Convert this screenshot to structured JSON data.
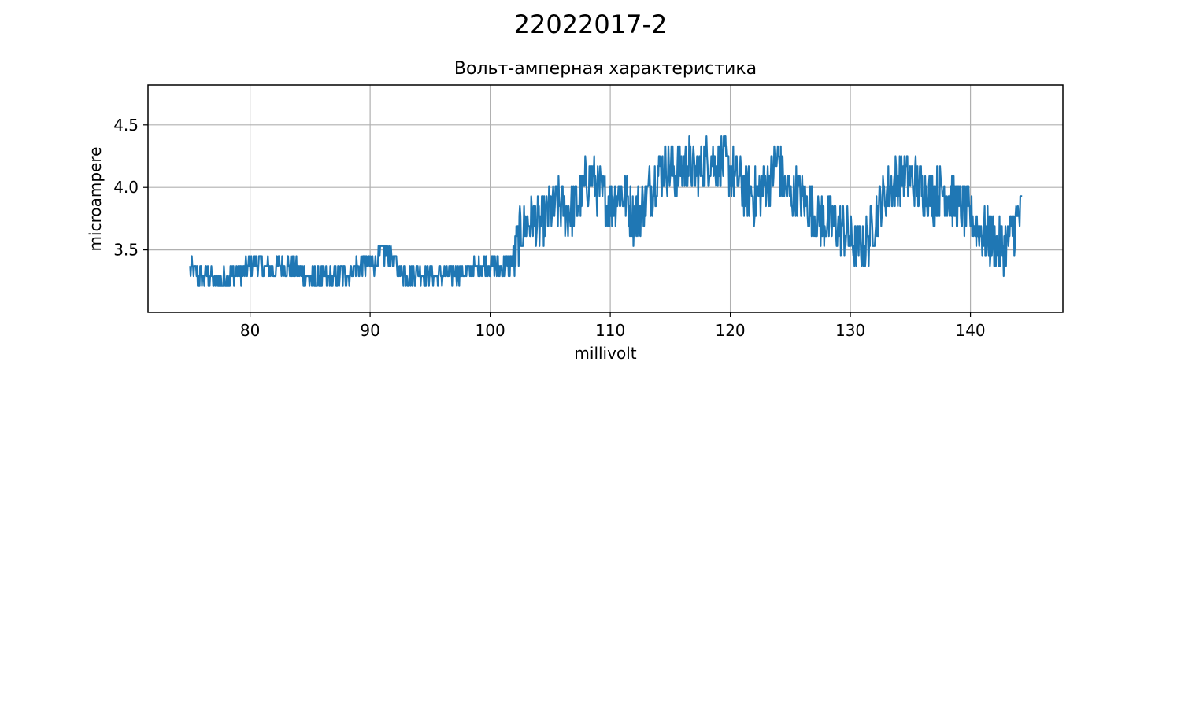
{
  "figure": {
    "suptitle": "22022017-2"
  },
  "chart_data": {
    "type": "line",
    "title": "Вольт-амперная характеристика",
    "xlabel": "millivolt",
    "ylabel": "microampere",
    "xlim": [
      71.5,
      147.7
    ],
    "ylim": [
      3.0,
      4.82
    ],
    "xticks": [
      80,
      90,
      100,
      110,
      120,
      130,
      140
    ],
    "xtick_labels": [
      "80",
      "90",
      "100",
      "110",
      "120",
      "130",
      "140"
    ],
    "yticks": [
      3.5,
      4.0,
      4.5
    ],
    "ytick_labels": [
      "3.5",
      "4.0",
      "4.5"
    ],
    "grid": true,
    "series": [
      {
        "color": "#1f77b4",
        "x_range": [
          75.0,
          144.3
        ],
        "points": [
          [
            75.0,
            3.33
          ],
          [
            75.5,
            3.28
          ],
          [
            76.0,
            3.27
          ],
          [
            76.5,
            3.28
          ],
          [
            77.0,
            3.25
          ],
          [
            77.5,
            3.24
          ],
          [
            78.0,
            3.26
          ],
          [
            78.5,
            3.28
          ],
          [
            79.0,
            3.3
          ],
          [
            79.5,
            3.32
          ],
          [
            80.0,
            3.36
          ],
          [
            80.5,
            3.38
          ],
          [
            81.0,
            3.35
          ],
          [
            81.5,
            3.33
          ],
          [
            82.0,
            3.34
          ],
          [
            82.5,
            3.36
          ],
          [
            83.0,
            3.37
          ],
          [
            83.5,
            3.35
          ],
          [
            84.0,
            3.33
          ],
          [
            84.5,
            3.3
          ],
          [
            85.0,
            3.26
          ],
          [
            85.5,
            3.25
          ],
          [
            86.0,
            3.26
          ],
          [
            86.5,
            3.27
          ],
          [
            87.0,
            3.26
          ],
          [
            87.5,
            3.28
          ],
          [
            88.0,
            3.3
          ],
          [
            88.5,
            3.33
          ],
          [
            89.0,
            3.35
          ],
          [
            89.5,
            3.37
          ],
          [
            90.0,
            3.38
          ],
          [
            90.5,
            3.4
          ],
          [
            91.0,
            3.45
          ],
          [
            91.5,
            3.48
          ],
          [
            92.0,
            3.38
          ],
          [
            92.5,
            3.33
          ],
          [
            93.0,
            3.3
          ],
          [
            93.5,
            3.29
          ],
          [
            94.0,
            3.3
          ],
          [
            94.5,
            3.31
          ],
          [
            95.0,
            3.29
          ],
          [
            95.5,
            3.28
          ],
          [
            96.0,
            3.29
          ],
          [
            96.5,
            3.3
          ],
          [
            97.0,
            3.31
          ],
          [
            97.5,
            3.3
          ],
          [
            98.0,
            3.31
          ],
          [
            98.5,
            3.33
          ],
          [
            99.0,
            3.34
          ],
          [
            99.5,
            3.35
          ],
          [
            100.0,
            3.36
          ],
          [
            100.5,
            3.35
          ],
          [
            101.0,
            3.34
          ],
          [
            101.5,
            3.36
          ],
          [
            102.0,
            3.42
          ],
          [
            102.5,
            3.62
          ],
          [
            103.0,
            3.72
          ],
          [
            103.5,
            3.74
          ],
          [
            104.0,
            3.68
          ],
          [
            104.5,
            3.72
          ],
          [
            105.0,
            3.8
          ],
          [
            105.5,
            3.86
          ],
          [
            106.0,
            3.84
          ],
          [
            106.5,
            3.8
          ],
          [
            107.0,
            3.83
          ],
          [
            107.5,
            3.9
          ],
          [
            108.0,
            4.02
          ],
          [
            108.5,
            4.08
          ],
          [
            109.0,
            3.98
          ],
          [
            109.5,
            3.88
          ],
          [
            110.0,
            3.86
          ],
          [
            110.5,
            3.93
          ],
          [
            111.0,
            3.96
          ],
          [
            111.5,
            3.85
          ],
          [
            112.0,
            3.76
          ],
          [
            112.5,
            3.8
          ],
          [
            113.0,
            3.9
          ],
          [
            113.5,
            4.0
          ],
          [
            114.0,
            4.1
          ],
          [
            114.5,
            4.18
          ],
          [
            115.0,
            4.14
          ],
          [
            115.5,
            4.1
          ],
          [
            116.0,
            4.15
          ],
          [
            116.5,
            4.18
          ],
          [
            117.0,
            4.12
          ],
          [
            117.5,
            4.15
          ],
          [
            118.0,
            4.2
          ],
          [
            118.5,
            4.22
          ],
          [
            119.0,
            4.18
          ],
          [
            119.5,
            4.2
          ],
          [
            120.0,
            4.12
          ],
          [
            120.5,
            4.05
          ],
          [
            121.0,
            4.0
          ],
          [
            121.5,
            3.96
          ],
          [
            122.0,
            3.92
          ],
          [
            122.5,
            3.96
          ],
          [
            123.0,
            4.02
          ],
          [
            123.5,
            4.1
          ],
          [
            124.0,
            4.2
          ],
          [
            124.5,
            4.0
          ],
          [
            125.0,
            3.9
          ],
          [
            125.5,
            3.95
          ],
          [
            126.0,
            3.9
          ],
          [
            126.5,
            3.84
          ],
          [
            127.0,
            3.78
          ],
          [
            127.5,
            3.74
          ],
          [
            128.0,
            3.72
          ],
          [
            128.5,
            3.7
          ],
          [
            129.0,
            3.68
          ],
          [
            129.5,
            3.65
          ],
          [
            130.0,
            3.58
          ],
          [
            130.5,
            3.52
          ],
          [
            131.0,
            3.5
          ],
          [
            131.5,
            3.58
          ],
          [
            132.0,
            3.72
          ],
          [
            132.5,
            3.86
          ],
          [
            133.0,
            3.94
          ],
          [
            133.5,
            4.0
          ],
          [
            134.0,
            4.05
          ],
          [
            134.5,
            4.08
          ],
          [
            135.0,
            4.05
          ],
          [
            135.5,
            4.02
          ],
          [
            136.0,
            3.98
          ],
          [
            136.5,
            3.94
          ],
          [
            137.0,
            3.92
          ],
          [
            137.5,
            3.95
          ],
          [
            138.0,
            3.96
          ],
          [
            138.5,
            3.9
          ],
          [
            139.0,
            3.84
          ],
          [
            139.5,
            3.8
          ],
          [
            140.0,
            3.76
          ],
          [
            140.5,
            3.7
          ],
          [
            141.0,
            3.62
          ],
          [
            141.5,
            3.58
          ],
          [
            142.0,
            3.55
          ],
          [
            142.5,
            3.52
          ],
          [
            143.0,
            3.54
          ],
          [
            143.5,
            3.64
          ],
          [
            144.0,
            3.74
          ],
          [
            144.3,
            3.82
          ]
        ]
      }
    ]
  }
}
